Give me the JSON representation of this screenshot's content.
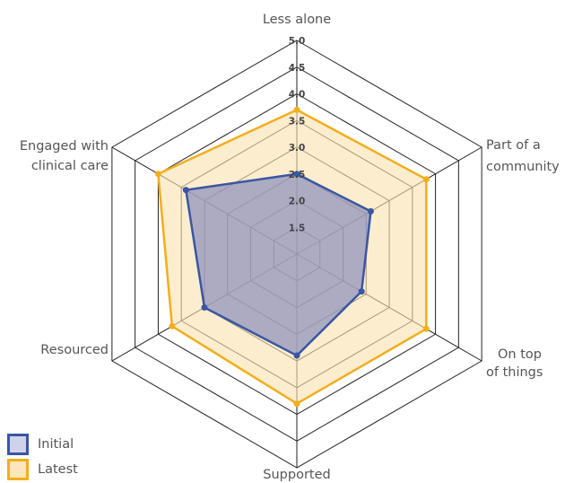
{
  "chart_data": {
    "type": "radar",
    "axes": [
      "Less alone",
      "Part of a community",
      "On top of things",
      "Supported",
      "Resourced",
      "Engaged with clinical care"
    ],
    "range": [
      1,
      5
    ],
    "ticks": [
      "1.5",
      "2.0",
      "2.5",
      "3.0",
      "3.5",
      "4.0",
      "4.5",
      "5.0"
    ],
    "tick_values": [
      1.5,
      2.0,
      2.5,
      3.0,
      3.5,
      4.0,
      4.5,
      5.0
    ],
    "series": [
      {
        "name": "Initial",
        "values": [
          2.5,
          2.6,
          2.4,
          2.9,
          3.0,
          3.4
        ],
        "color": "#3a56a3",
        "fill": "#8c91bd"
      },
      {
        "name": "Latest",
        "values": [
          3.7,
          3.8,
          3.8,
          3.8,
          3.7,
          4.0
        ],
        "color": "#f2ae1c",
        "fill": "#fbe2b1"
      }
    ],
    "grid": true,
    "legend_position": "bottom-left"
  }
}
